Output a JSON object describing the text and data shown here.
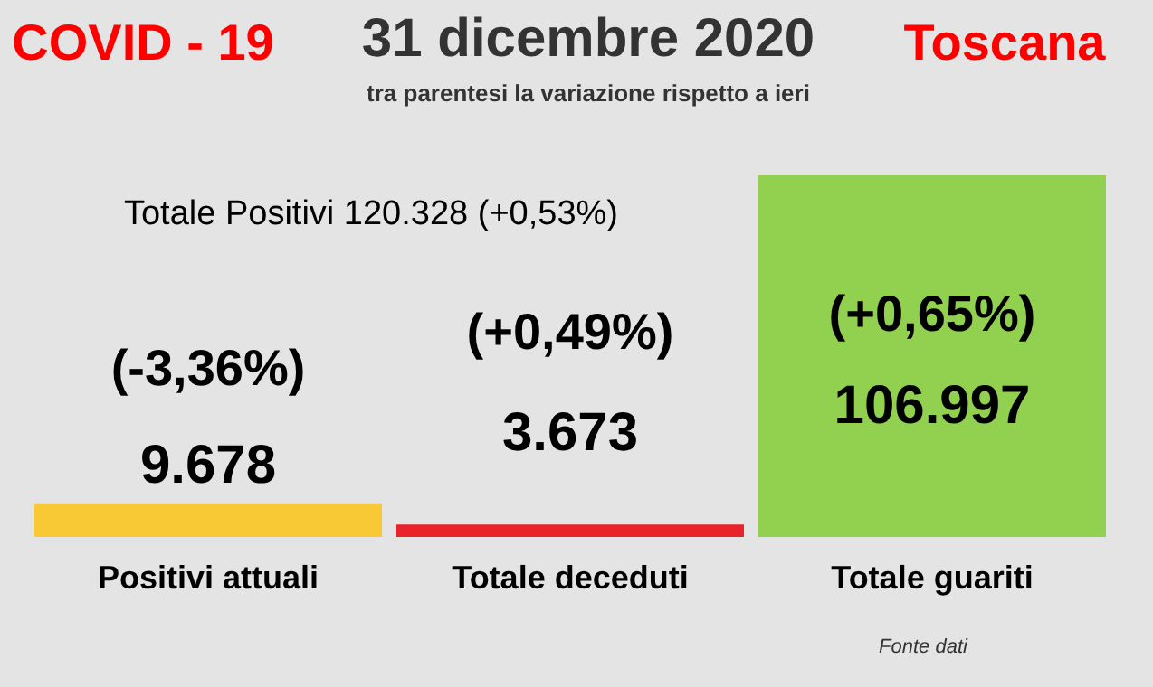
{
  "chart_data": {
    "type": "bar",
    "title": "31 dicembre 2020",
    "subtitle": "tra parentesi la variazione rispetto a ieri",
    "categories": [
      "Positivi attuali",
      "Totale deceduti",
      "Totale guariti"
    ],
    "values": [
      9678,
      3673,
      106997
    ],
    "colors": [
      "#f9c935",
      "#e8232a",
      "#92d050"
    ],
    "value_labels": [
      "9.678",
      "3.673",
      "106.997"
    ],
    "annotations": [
      "COVID - 19",
      "Toscana",
      "Totale Positivi     120.328 (+0,53%)",
      "(-3,36%)",
      "(+0,49%)",
      "(+0,65%)",
      "Fonte dati"
    ],
    "grid": false
  }
}
